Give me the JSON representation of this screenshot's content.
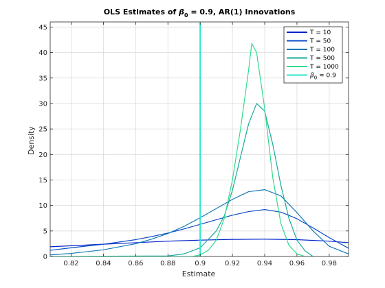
{
  "chart_data": {
    "type": "line",
    "title_main": "OLS Estimates of ",
    "title_beta": "β",
    "title_sub": "0",
    "title_tail": " = 0.9, AR(1) Innovations",
    "xlabel": "Estimate",
    "ylabel": "Density",
    "xlim": [
      0.807,
      0.992
    ],
    "ylim": [
      0,
      46
    ],
    "xticks": [
      0.82,
      0.84,
      0.86,
      0.88,
      0.9,
      0.92,
      0.94,
      0.96,
      0.98
    ],
    "xtick_labels": [
      "0.82",
      "0.84",
      "0.86",
      "0.88",
      "0.9",
      "0.92",
      "0.94",
      "0.96",
      "0.98"
    ],
    "yticks": [
      0,
      5,
      10,
      15,
      20,
      25,
      30,
      35,
      40,
      45
    ],
    "ytick_labels": [
      "0",
      "5",
      "10",
      "15",
      "20",
      "25",
      "30",
      "35",
      "40",
      "45"
    ],
    "grid": true,
    "legend_position": "top-right",
    "series": [
      {
        "name": "T = 10",
        "color": "#0022cc",
        "x": [
          0.807,
          0.82,
          0.84,
          0.86,
          0.88,
          0.9,
          0.92,
          0.94,
          0.96,
          0.98,
          0.992
        ],
        "y": [
          1.9,
          2.1,
          2.4,
          2.7,
          3.0,
          3.2,
          3.35,
          3.4,
          3.3,
          3.0,
          2.7
        ]
      },
      {
        "name": "T = 50",
        "color": "#0a4cc6",
        "x": [
          0.807,
          0.82,
          0.84,
          0.86,
          0.87,
          0.88,
          0.89,
          0.9,
          0.91,
          0.92,
          0.93,
          0.94,
          0.95,
          0.96,
          0.97,
          0.98,
          0.992
        ],
        "y": [
          1.2,
          1.7,
          2.4,
          3.3,
          3.9,
          4.6,
          5.4,
          6.3,
          7.2,
          8.1,
          8.8,
          9.2,
          8.7,
          7.4,
          5.6,
          3.7,
          1.6
        ]
      },
      {
        "name": "T = 100",
        "color": "#1278b8",
        "x": [
          0.807,
          0.82,
          0.84,
          0.86,
          0.87,
          0.88,
          0.89,
          0.9,
          0.91,
          0.92,
          0.93,
          0.94,
          0.95,
          0.96,
          0.97,
          0.98,
          0.992
        ],
        "y": [
          0.3,
          0.6,
          1.3,
          2.5,
          3.4,
          4.5,
          5.9,
          7.6,
          9.4,
          11.2,
          12.7,
          13.1,
          11.9,
          8.6,
          5.0,
          2.0,
          0.5
        ]
      },
      {
        "name": "T = 500",
        "color": "#17a89c",
        "x": [
          0.8,
          0.88,
          0.89,
          0.9,
          0.91,
          0.915,
          0.92,
          0.925,
          0.93,
          0.935,
          0.94,
          0.945,
          0.95,
          0.955,
          0.96,
          0.965,
          0.97
        ],
        "y": [
          0,
          0.1,
          0.5,
          1.7,
          5.0,
          8.0,
          13.0,
          19.5,
          26.0,
          30.0,
          28.5,
          22.0,
          14.0,
          7.5,
          3.2,
          1.1,
          0
        ]
      },
      {
        "name": "T = 1000",
        "color": "#2edc8c",
        "x": [
          0.8,
          0.895,
          0.9,
          0.905,
          0.91,
          0.915,
          0.92,
          0.925,
          0.93,
          0.932,
          0.935,
          0.94,
          0.945,
          0.95,
          0.955,
          0.96,
          0.965
        ],
        "y": [
          0,
          0,
          0.3,
          1.2,
          3.2,
          7.5,
          15.0,
          25.0,
          36.5,
          41.8,
          40.0,
          29.0,
          15.5,
          6.5,
          2.2,
          0.5,
          0
        ]
      },
      {
        "name": "β0 = 0.9",
        "legend_beta": "β",
        "legend_sub": "0",
        "legend_tail": " = 0.9",
        "color": "#2ee6cc",
        "vline": 0.9
      }
    ]
  }
}
